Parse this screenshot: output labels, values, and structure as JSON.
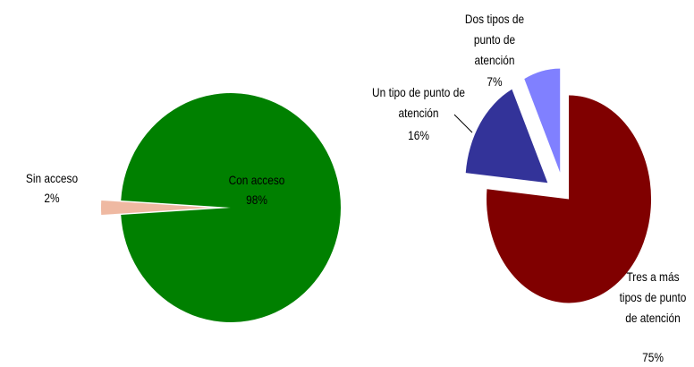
{
  "chart_data": [
    {
      "type": "pie",
      "categories": [
        "Sin acceso",
        "Con acceso"
      ],
      "values": [
        2,
        98
      ],
      "value_labels": [
        "2%",
        "98%"
      ],
      "colors": [
        "#efb9a2",
        "#008000"
      ]
    },
    {
      "type": "pie",
      "categories": [
        "Tres a más tipos de punto de atención",
        "Un tipo de punto de atención",
        "Dos tipos de punto de atención"
      ],
      "values": [
        75,
        16,
        7
      ],
      "value_labels": [
        "75%",
        "16%",
        "7%"
      ],
      "colors": [
        "#800000",
        "#333399",
        "#8080ff"
      ]
    }
  ]
}
